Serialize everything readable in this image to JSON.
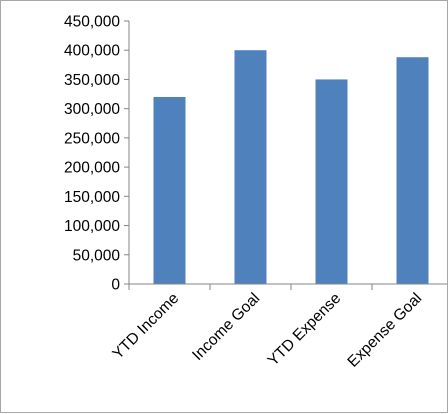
{
  "chart_data": {
    "type": "bar",
    "categories": [
      "YTD Income",
      "Income Goal",
      "YTD Expense",
      "Expense Goal"
    ],
    "values": [
      320000,
      400000,
      350000,
      388000
    ],
    "ylim": [
      0,
      450000
    ],
    "yticks": [
      "0",
      "50,000",
      "100,000",
      "150,000",
      "200,000",
      "250,000",
      "300,000",
      "350,000",
      "400,000",
      "450,000"
    ],
    "grid": false,
    "legend": "none",
    "bar_color": "#4f81bd",
    "axis_color": "#868686"
  }
}
